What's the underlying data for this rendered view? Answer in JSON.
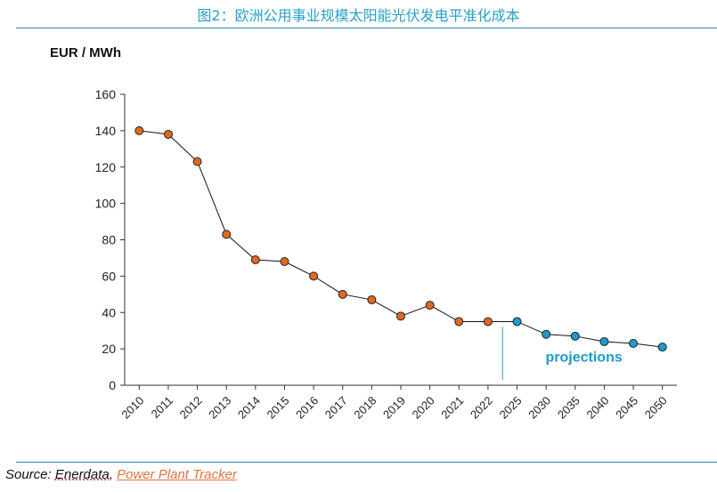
{
  "title": "图2：欧洲公用事业规模太阳能光伏发电平准化成本",
  "chart_data": {
    "type": "line",
    "ylabel": "EUR / MWh",
    "ylim": [
      0,
      160
    ],
    "yticks": [
      0,
      20,
      40,
      60,
      80,
      100,
      120,
      140,
      160
    ],
    "grid": false,
    "categories": [
      "2010",
      "2011",
      "2012",
      "2013",
      "2014",
      "2015",
      "2016",
      "2017",
      "2018",
      "2019",
      "2020",
      "2021",
      "2022",
      "2025",
      "2030",
      "2035",
      "2040",
      "2045",
      "2050"
    ],
    "values": [
      140,
      138,
      123,
      83,
      69,
      68,
      60,
      50,
      47,
      38,
      44,
      35,
      35,
      35,
      28,
      27,
      24,
      23,
      21
    ],
    "historical_color": "#e0691f",
    "projection_color": "#1a9ccc",
    "projection_start_index": 13,
    "annotation": "projections"
  },
  "source": {
    "prefix": "Source:",
    "name": "Enerdata,",
    "link": "Power Plant Tracker"
  }
}
